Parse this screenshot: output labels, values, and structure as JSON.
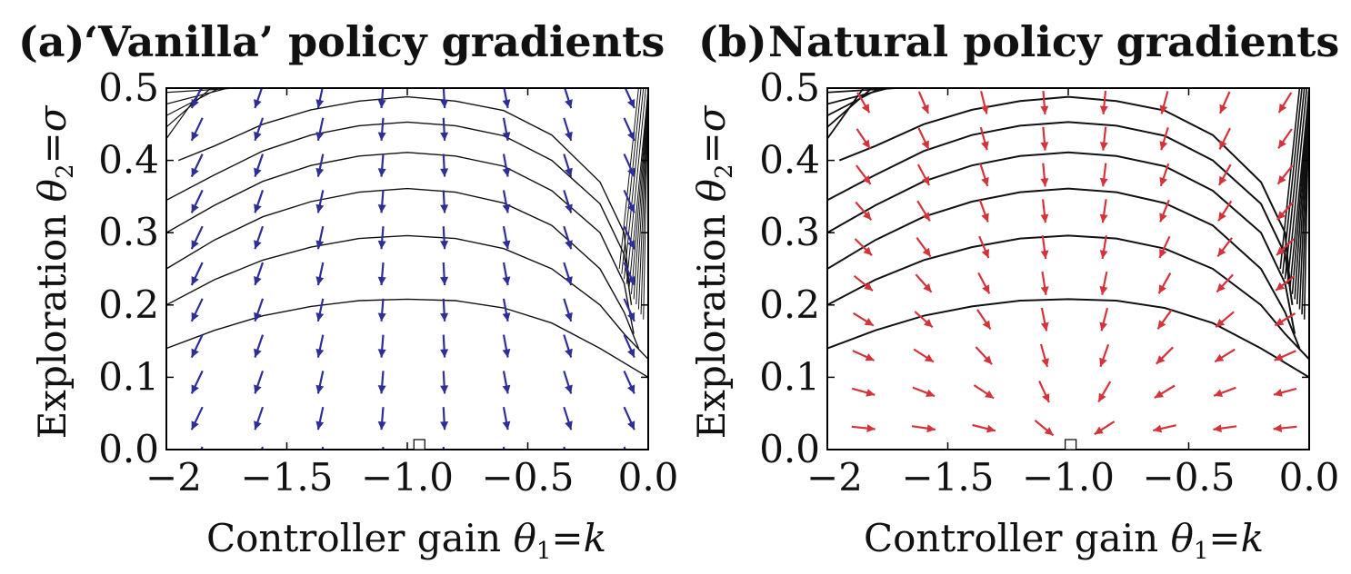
{
  "figure": {
    "panels": [
      {
        "id": "a",
        "label": "(a)",
        "title": "‘Vanilla’ policy gradients",
        "xlabel_text": "Controller gain ",
        "xlabel_var": "θ",
        "xlabel_sub": "1",
        "xlabel_rhs": "=k",
        "ylabel_text": "Exploration ",
        "ylabel_var": "θ",
        "ylabel_sub": "2",
        "ylabel_rhs": "=σ",
        "arrow_color": "#2e2e96",
        "contour_color": "#111111"
      },
      {
        "id": "b",
        "label": "(b)",
        "title": "Natural policy gradients",
        "xlabel_text": "Controller gain ",
        "xlabel_var": "θ",
        "xlabel_sub": "1",
        "xlabel_rhs": "=k",
        "ylabel_text": "Exploration ",
        "ylabel_var": "θ",
        "ylabel_sub": "2",
        "ylabel_rhs": "=σ",
        "arrow_color": "#d3343c",
        "contour_color": "#111111"
      }
    ]
  },
  "chart_data": [
    {
      "type": "contour-quiver",
      "title": "‘Vanilla’ policy gradients",
      "xlabel": "Controller gain θ1=k",
      "ylabel": "Exploration θ2=σ",
      "xlim": [
        -2.0,
        0.0
      ],
      "ylim": [
        0.0,
        0.5
      ],
      "xticks": [
        -2.0,
        -1.5,
        -1.0,
        -0.5,
        0.0
      ],
      "xtick_labels": [
        "−2",
        "−1.5",
        "−1.0",
        "−0.5",
        "0.0"
      ],
      "yticks": [
        0.0,
        0.1,
        0.2,
        0.3,
        0.4,
        0.5
      ],
      "ytick_labels": [
        "0.0",
        "0.1",
        "0.2",
        "0.3",
        "0.4",
        "0.5"
      ],
      "optimum": {
        "x": -0.95,
        "y": 0.0
      },
      "contours": [
        {
          "level": 1,
          "x": [
            -2.0,
            -1.8,
            -1.6,
            -1.4,
            -1.2,
            -1.0,
            -0.8,
            -0.6,
            -0.4,
            -0.2,
            0.0
          ],
          "y": [
            0.14,
            0.165,
            0.185,
            0.198,
            0.206,
            0.208,
            0.206,
            0.196,
            0.175,
            0.14,
            0.1
          ]
        },
        {
          "level": 2,
          "x": [
            -2.0,
            -1.8,
            -1.6,
            -1.4,
            -1.2,
            -1.0,
            -0.8,
            -0.6,
            -0.4,
            -0.2,
            -0.1,
            0.0
          ],
          "y": [
            0.2,
            0.235,
            0.262,
            0.28,
            0.292,
            0.296,
            0.292,
            0.278,
            0.25,
            0.2,
            0.16,
            0.125
          ]
        },
        {
          "level": 3,
          "x": [
            -2.0,
            -1.8,
            -1.6,
            -1.4,
            -1.2,
            -1.0,
            -0.8,
            -0.6,
            -0.4,
            -0.2,
            -0.1,
            -0.04
          ],
          "y": [
            0.25,
            0.29,
            0.322,
            0.343,
            0.356,
            0.361,
            0.356,
            0.341,
            0.31,
            0.25,
            0.19,
            0.14
          ]
        },
        {
          "level": 4,
          "x": [
            -2.0,
            -1.8,
            -1.6,
            -1.4,
            -1.2,
            -1.0,
            -0.8,
            -0.6,
            -0.4,
            -0.2,
            -0.1,
            -0.06
          ],
          "y": [
            0.3,
            0.338,
            0.371,
            0.393,
            0.406,
            0.411,
            0.406,
            0.392,
            0.358,
            0.3,
            0.23,
            0.16
          ]
        },
        {
          "level": 5,
          "x": [
            -2.0,
            -1.8,
            -1.6,
            -1.4,
            -1.2,
            -1.0,
            -0.8,
            -0.6,
            -0.4,
            -0.2,
            -0.1,
            -0.07
          ],
          "y": [
            0.345,
            0.38,
            0.413,
            0.435,
            0.448,
            0.453,
            0.448,
            0.434,
            0.4,
            0.34,
            0.27,
            0.2
          ]
        },
        {
          "level": 6,
          "x": [
            -1.95,
            -1.8,
            -1.6,
            -1.4,
            -1.2,
            -1.0,
            -0.8,
            -0.6,
            -0.4,
            -0.2,
            -0.1,
            -0.08
          ],
          "y": [
            0.4,
            0.42,
            0.45,
            0.47,
            0.482,
            0.488,
            0.482,
            0.469,
            0.435,
            0.37,
            0.3,
            0.23
          ]
        }
      ],
      "arrow_rows_y": [
        0.0,
        0.055,
        0.105,
        0.155,
        0.205,
        0.255,
        0.305,
        0.355,
        0.405,
        0.455,
        0.5
      ],
      "arrow_cols_x": [
        -1.85,
        -1.6,
        -1.35,
        -1.1,
        -0.85,
        -0.6,
        -0.35,
        -0.1
      ],
      "arrow_style": "long-downward"
    },
    {
      "type": "contour-quiver",
      "title": "Natural policy gradients",
      "xlabel": "Controller gain θ1=k",
      "ylabel": "Exploration θ2=σ",
      "xlim": [
        -2.0,
        0.0
      ],
      "ylim": [
        0.0,
        0.5
      ],
      "xticks": [
        -2.0,
        -1.5,
        -1.0,
        -0.5,
        0.0
      ],
      "xtick_labels": [
        "−2",
        "−1.5",
        "−1.0",
        "−0.5",
        "0.0"
      ],
      "yticks": [
        0.0,
        0.1,
        0.2,
        0.3,
        0.4,
        0.5
      ],
      "ytick_labels": [
        "0.0",
        "0.1",
        "0.2",
        "0.3",
        "0.4",
        "0.5"
      ],
      "optimum": {
        "x": -0.99,
        "y": 0.0
      },
      "contours": [
        {
          "level": 1,
          "x": [
            -2.0,
            -1.8,
            -1.6,
            -1.4,
            -1.2,
            -1.0,
            -0.8,
            -0.6,
            -0.4,
            -0.2,
            0.0
          ],
          "y": [
            0.14,
            0.165,
            0.185,
            0.198,
            0.206,
            0.208,
            0.206,
            0.196,
            0.175,
            0.14,
            0.1
          ]
        },
        {
          "level": 2,
          "x": [
            -2.0,
            -1.8,
            -1.6,
            -1.4,
            -1.2,
            -1.0,
            -0.8,
            -0.6,
            -0.4,
            -0.2,
            -0.1,
            0.0
          ],
          "y": [
            0.2,
            0.235,
            0.262,
            0.28,
            0.292,
            0.296,
            0.292,
            0.278,
            0.25,
            0.2,
            0.16,
            0.125
          ]
        },
        {
          "level": 3,
          "x": [
            -2.0,
            -1.8,
            -1.6,
            -1.4,
            -1.2,
            -1.0,
            -0.8,
            -0.6,
            -0.4,
            -0.2,
            -0.1,
            -0.04
          ],
          "y": [
            0.25,
            0.29,
            0.322,
            0.343,
            0.356,
            0.361,
            0.356,
            0.341,
            0.31,
            0.25,
            0.19,
            0.14
          ]
        },
        {
          "level": 4,
          "x": [
            -2.0,
            -1.8,
            -1.6,
            -1.4,
            -1.2,
            -1.0,
            -0.8,
            -0.6,
            -0.4,
            -0.2,
            -0.1,
            -0.06
          ],
          "y": [
            0.3,
            0.338,
            0.371,
            0.393,
            0.406,
            0.411,
            0.406,
            0.392,
            0.358,
            0.3,
            0.23,
            0.16
          ]
        },
        {
          "level": 5,
          "x": [
            -2.0,
            -1.8,
            -1.6,
            -1.4,
            -1.2,
            -1.0,
            -0.8,
            -0.6,
            -0.4,
            -0.2,
            -0.1,
            -0.07
          ],
          "y": [
            0.345,
            0.38,
            0.413,
            0.435,
            0.448,
            0.453,
            0.448,
            0.434,
            0.4,
            0.34,
            0.27,
            0.2
          ]
        },
        {
          "level": 6,
          "x": [
            -1.95,
            -1.8,
            -1.6,
            -1.4,
            -1.2,
            -1.0,
            -0.8,
            -0.6,
            -0.4,
            -0.2,
            -0.1,
            -0.08
          ],
          "y": [
            0.4,
            0.42,
            0.45,
            0.47,
            0.482,
            0.488,
            0.482,
            0.469,
            0.435,
            0.37,
            0.3,
            0.23
          ]
        }
      ],
      "arrow_rows_y": [
        0.03,
        0.08,
        0.13,
        0.18,
        0.23,
        0.28,
        0.33,
        0.38,
        0.43,
        0.48
      ],
      "arrow_cols_x": [
        -1.85,
        -1.6,
        -1.35,
        -1.1,
        -0.85,
        -0.6,
        -0.35,
        -0.1
      ],
      "arrow_style": "converging-to-optimum"
    }
  ]
}
